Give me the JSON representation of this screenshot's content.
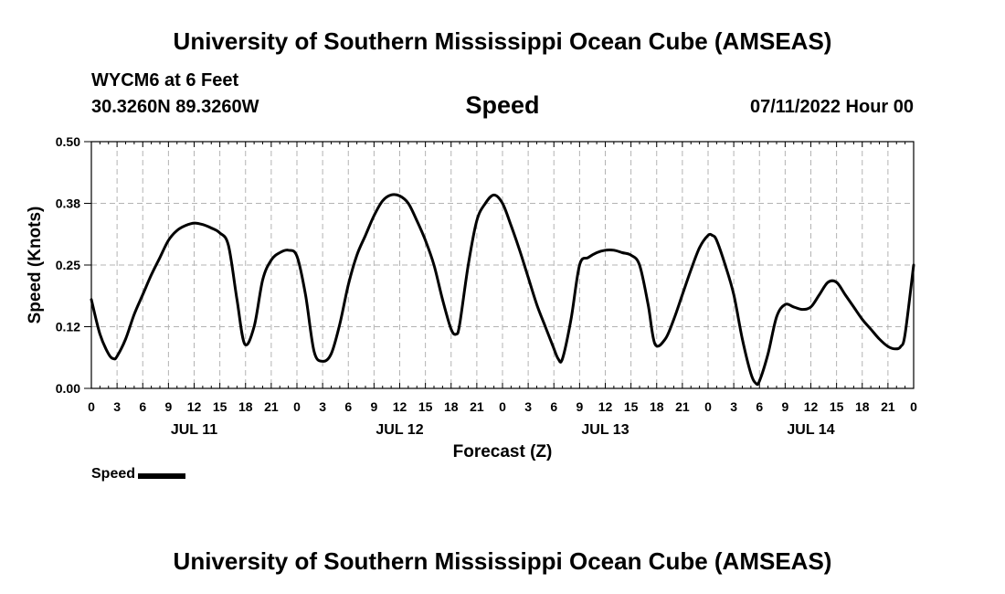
{
  "header": {
    "title_top": "University of Southern Mississippi Ocean Cube (AMSEAS)",
    "title_bottom": "University of Southern Mississippi Ocean Cube (AMSEAS)",
    "station": "WYCM6 at 6 Feet",
    "coords": "30.3260N  89.3260W",
    "datetime": "07/11/2022 Hour 00"
  },
  "chart_data": {
    "type": "line",
    "title": "Speed",
    "xlabel": "Forecast (Z)",
    "ylabel": "Speed (Knots)",
    "ylim": [
      0,
      0.5
    ],
    "xlim_hours": [
      0,
      96
    ],
    "grid": true,
    "y_ticks": [
      {
        "value": 0.0,
        "label": "0.00"
      },
      {
        "value": 0.125,
        "label": "0.12"
      },
      {
        "value": 0.25,
        "label": "0.25"
      },
      {
        "value": 0.375,
        "label": "0.38"
      },
      {
        "value": 0.5,
        "label": "0.50"
      }
    ],
    "x_ticks": [
      {
        "hour": 0,
        "label": "0"
      },
      {
        "hour": 3,
        "label": "3"
      },
      {
        "hour": 6,
        "label": "6"
      },
      {
        "hour": 9,
        "label": "9"
      },
      {
        "hour": 12,
        "label": "12"
      },
      {
        "hour": 15,
        "label": "15"
      },
      {
        "hour": 18,
        "label": "18"
      },
      {
        "hour": 21,
        "label": "21"
      },
      {
        "hour": 24,
        "label": "0"
      },
      {
        "hour": 27,
        "label": "3"
      },
      {
        "hour": 30,
        "label": "6"
      },
      {
        "hour": 33,
        "label": "9"
      },
      {
        "hour": 36,
        "label": "12"
      },
      {
        "hour": 39,
        "label": "15"
      },
      {
        "hour": 42,
        "label": "18"
      },
      {
        "hour": 45,
        "label": "21"
      },
      {
        "hour": 48,
        "label": "0"
      },
      {
        "hour": 51,
        "label": "3"
      },
      {
        "hour": 54,
        "label": "6"
      },
      {
        "hour": 57,
        "label": "9"
      },
      {
        "hour": 60,
        "label": "12"
      },
      {
        "hour": 63,
        "label": "15"
      },
      {
        "hour": 66,
        "label": "18"
      },
      {
        "hour": 69,
        "label": "21"
      },
      {
        "hour": 72,
        "label": "0"
      },
      {
        "hour": 75,
        "label": "3"
      },
      {
        "hour": 78,
        "label": "6"
      },
      {
        "hour": 81,
        "label": "9"
      },
      {
        "hour": 84,
        "label": "12"
      },
      {
        "hour": 87,
        "label": "15"
      },
      {
        "hour": 90,
        "label": "18"
      },
      {
        "hour": 93,
        "label": "21"
      },
      {
        "hour": 96,
        "label": "0"
      }
    ],
    "day_labels": [
      {
        "hour": 12,
        "label": "JUL 11"
      },
      {
        "hour": 36,
        "label": "JUL 12"
      },
      {
        "hour": 60,
        "label": "JUL 13"
      },
      {
        "hour": 84,
        "label": "JUL 14"
      }
    ],
    "series": [
      {
        "name": "Speed",
        "x": [
          0,
          1,
          2,
          2.6,
          3,
          4,
          5,
          6,
          7,
          8,
          9,
          10,
          11,
          12,
          13,
          14,
          15,
          16,
          17,
          17.9,
          19,
          20,
          21,
          22,
          23,
          24,
          25,
          26,
          27,
          28,
          29,
          30,
          31,
          32,
          33,
          34,
          35,
          36,
          37,
          38,
          39,
          40,
          41,
          42,
          42.6,
          43,
          44,
          45,
          46,
          47,
          48,
          49,
          50,
          51,
          52,
          53,
          53.9,
          54.5,
          55,
          56,
          57,
          58,
          59,
          60,
          61,
          62,
          63,
          64,
          65,
          65.8,
          67,
          68,
          69,
          70,
          71,
          72,
          72.5,
          73,
          74,
          75,
          76,
          77,
          77.6,
          78,
          79,
          80,
          81,
          82,
          83,
          84,
          85,
          86,
          87,
          88,
          89,
          90,
          91,
          92,
          93,
          93.9,
          94.5,
          95,
          96
        ],
        "values": [
          0.18,
          0.11,
          0.07,
          0.06,
          0.065,
          0.1,
          0.15,
          0.19,
          0.23,
          0.265,
          0.3,
          0.32,
          0.33,
          0.335,
          0.332,
          0.325,
          0.315,
          0.29,
          0.18,
          0.09,
          0.125,
          0.22,
          0.26,
          0.275,
          0.28,
          0.268,
          0.19,
          0.075,
          0.055,
          0.07,
          0.13,
          0.21,
          0.27,
          0.31,
          0.35,
          0.38,
          0.392,
          0.39,
          0.375,
          0.34,
          0.3,
          0.25,
          0.18,
          0.12,
          0.11,
          0.13,
          0.25,
          0.34,
          0.375,
          0.392,
          0.375,
          0.33,
          0.28,
          0.225,
          0.17,
          0.125,
          0.085,
          0.06,
          0.06,
          0.14,
          0.25,
          0.265,
          0.275,
          0.28,
          0.28,
          0.275,
          0.27,
          0.25,
          0.17,
          0.09,
          0.1,
          0.14,
          0.19,
          0.24,
          0.285,
          0.31,
          0.31,
          0.3,
          0.25,
          0.19,
          0.1,
          0.03,
          0.01,
          0.015,
          0.07,
          0.145,
          0.17,
          0.165,
          0.16,
          0.165,
          0.19,
          0.215,
          0.215,
          0.19,
          0.165,
          0.14,
          0.12,
          0.1,
          0.085,
          0.08,
          0.085,
          0.11,
          0.25
        ]
      }
    ]
  },
  "legend": {
    "label": "Speed"
  }
}
